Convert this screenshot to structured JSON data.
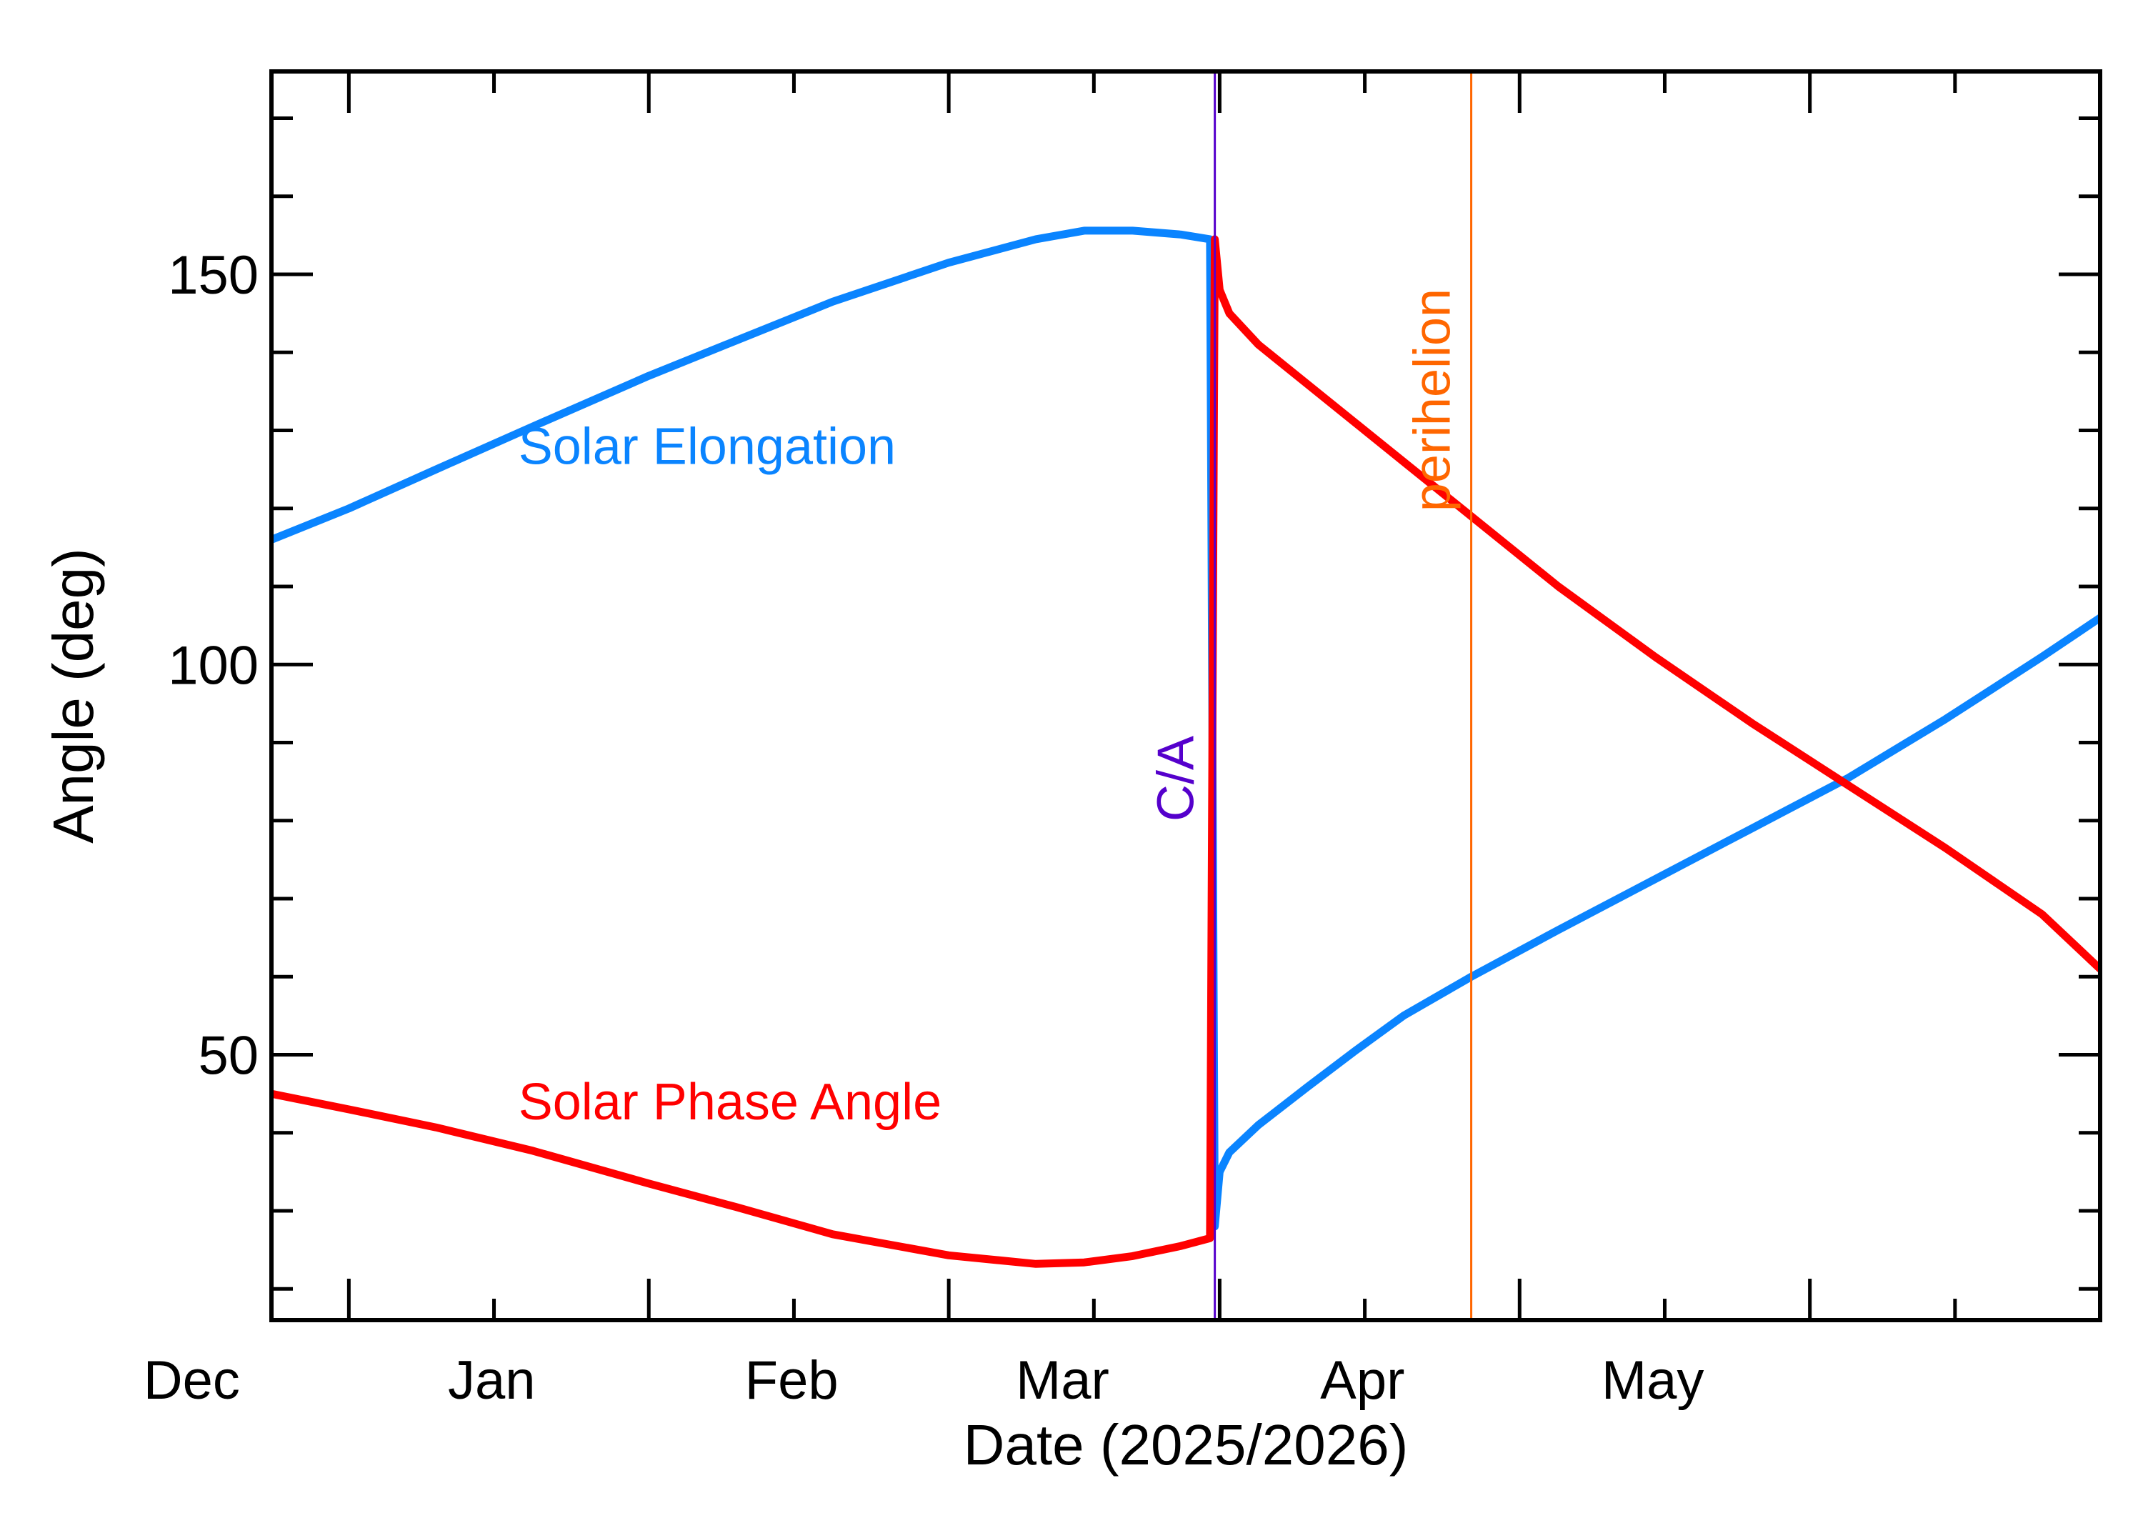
{
  "chart_data": {
    "type": "line",
    "xlabel": "Date (2025/2026)",
    "ylabel": "Angle (deg)",
    "ylim": [
      16,
      176
    ],
    "y_ticks": [
      50,
      100,
      150
    ],
    "y_minor_step": 10,
    "x_tick_labels": [
      {
        "label": "Dec",
        "date": "2025-12-01"
      },
      {
        "label": "Jan",
        "date": "2026-01-01"
      },
      {
        "label": "Feb",
        "date": "2026-02-01"
      },
      {
        "label": "Mar",
        "date": "2026-03-01"
      },
      {
        "label": "Apr",
        "date": "2026-04-01"
      },
      {
        "label": "May",
        "date": "2026-05-01"
      }
    ],
    "xlim": [
      "2025-11-23",
      "2026-05-31"
    ],
    "series": [
      {
        "name": "Solar Elongation",
        "color": "#0a84ff",
        "points": [
          [
            "2025-11-23",
            116.0
          ],
          [
            "2025-12-01",
            120.0
          ],
          [
            "2025-12-10",
            125.0
          ],
          [
            "2025-12-20",
            130.5
          ],
          [
            "2026-01-01",
            137.0
          ],
          [
            "2026-01-10",
            141.5
          ],
          [
            "2026-01-20",
            146.5
          ],
          [
            "2026-02-01",
            151.5
          ],
          [
            "2026-02-10",
            154.5
          ],
          [
            "2026-02-15",
            155.6
          ],
          [
            "2026-02-20",
            155.6
          ],
          [
            "2026-02-25",
            155.1
          ],
          [
            "2026-02-28",
            154.5
          ],
          [
            "2026-02-28T12:00",
            28.0
          ],
          [
            "2026-03-01",
            35.0
          ],
          [
            "2026-03-02",
            37.5
          ],
          [
            "2026-03-05",
            41.0
          ],
          [
            "2026-03-10",
            45.8
          ],
          [
            "2026-03-15",
            50.5
          ],
          [
            "2026-03-20",
            55.0
          ],
          [
            "2026-03-27",
            60.0
          ],
          [
            "2026-04-05",
            66.0
          ],
          [
            "2026-04-15",
            72.5
          ],
          [
            "2026-04-25",
            79.0
          ],
          [
            "2026-05-05",
            85.5
          ],
          [
            "2026-05-15",
            93.0
          ],
          [
            "2026-05-25",
            101.0
          ],
          [
            "2026-05-31",
            106.0
          ]
        ]
      },
      {
        "name": "Solar Phase Angle",
        "color": "#ff0000",
        "points": [
          [
            "2025-11-23",
            45.0
          ],
          [
            "2025-12-01",
            43.0
          ],
          [
            "2025-12-10",
            40.7
          ],
          [
            "2025-12-20",
            37.7
          ],
          [
            "2026-01-01",
            33.5
          ],
          [
            "2026-01-10",
            30.5
          ],
          [
            "2026-01-20",
            27.0
          ],
          [
            "2026-02-01",
            24.3
          ],
          [
            "2026-02-10",
            23.2
          ],
          [
            "2026-02-15",
            23.4
          ],
          [
            "2026-02-20",
            24.2
          ],
          [
            "2026-02-25",
            25.5
          ],
          [
            "2026-02-28",
            26.5
          ],
          [
            "2026-02-28T12:00",
            154.5
          ],
          [
            "2026-03-01",
            148.0
          ],
          [
            "2026-03-02",
            145.0
          ],
          [
            "2026-03-05",
            141.0
          ],
          [
            "2026-03-10",
            136.0
          ],
          [
            "2026-03-15",
            131.0
          ],
          [
            "2026-03-20",
            126.0
          ],
          [
            "2026-03-27",
            119.0
          ],
          [
            "2026-04-05",
            110.0
          ],
          [
            "2026-04-15",
            101.0
          ],
          [
            "2026-04-25",
            92.5
          ],
          [
            "2026-05-05",
            84.5
          ],
          [
            "2026-05-15",
            76.5
          ],
          [
            "2026-05-25",
            68.0
          ],
          [
            "2026-05-31",
            61.0
          ]
        ]
      }
    ],
    "annotations": [
      {
        "label": "Solar Elongation",
        "series": "Solar Elongation",
        "date": "2025-12-20",
        "y": 128,
        "color": "#0a84ff"
      },
      {
        "label": "Solar Phase Angle",
        "series": "Solar Phase Angle",
        "date": "2025-12-20",
        "y": 44,
        "color": "#ff0000"
      }
    ],
    "vertical_lines": [
      {
        "label": "C/A",
        "date": "2026-02-28T12:00",
        "color": "#5500cc"
      },
      {
        "label": "perihelion",
        "date": "2026-03-27",
        "color": "#ff6600"
      }
    ],
    "grid": false
  }
}
